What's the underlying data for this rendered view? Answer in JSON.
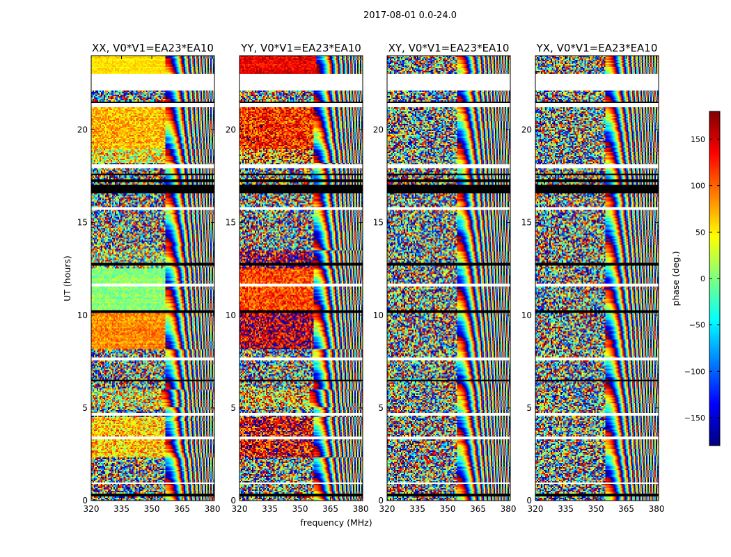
{
  "chart_data": {
    "type": "heatmap",
    "suptitle": "2017-08-01 0.0-24.0",
    "xlabel": "frequency (MHz)",
    "ylabel": "UT (hours)",
    "xlim": [
      320,
      381
    ],
    "ylim": [
      0,
      24
    ],
    "xticks": [
      320,
      335,
      350,
      365,
      380
    ],
    "yticks": [
      0,
      5,
      10,
      15,
      20
    ],
    "colorbar": {
      "label": "phase (deg.)",
      "range": [
        -180,
        180
      ],
      "ticks": [
        -150,
        -100,
        -50,
        0,
        50,
        100,
        150
      ],
      "colormap": "jet",
      "colors": [
        "#00007f",
        "#0000ff",
        "#007fff",
        "#00ffff",
        "#7fff7f",
        "#ffff00",
        "#ff7f00",
        "#ff0000",
        "#7f0000"
      ]
    },
    "flagged_color": "#000000",
    "no_data_color": "#ffffff",
    "panels": [
      {
        "title": "XX, V0*V1=EA23*EA10",
        "segments": [
          {
            "ut": [
              23.0,
              24.0
            ],
            "mean_phase": 55,
            "spread": 14,
            "fringe_above": 357
          },
          {
            "ut": [
              19.0,
              21.2
            ],
            "mean_phase": 70,
            "spread": 40,
            "fringe_above": 357
          },
          {
            "ut": [
              18.2,
              19.0
            ],
            "mean_phase": 40,
            "spread": 90,
            "fringe_above": 357
          },
          {
            "ut": [
              12.5,
              13.5
            ],
            "mean_phase": 20,
            "spread": 140,
            "fringe_above": 357
          },
          {
            "ut": [
              10.2,
              12.5
            ],
            "mean_phase": 5,
            "spread": 25,
            "fringe_above": 357
          },
          {
            "ut": [
              8.2,
              10.2
            ],
            "mean_phase": 85,
            "spread": 30,
            "fringe_above": 357
          },
          {
            "ut": [
              5.0,
              6.0
            ],
            "mean_phase": 40,
            "spread": 120,
            "fringe_above": 355
          },
          {
            "ut": [
              2.3,
              4.5
            ],
            "mean_phase": 60,
            "spread": 60,
            "fringe_above": 357
          },
          {
            "ut": [
              0.0,
              2.3
            ],
            "mean_phase": 0,
            "spread": 180,
            "fringe_above": 357
          }
        ]
      },
      {
        "title": "YY, V0*V1=EA23*EA10",
        "segments": [
          {
            "ut": [
              23.0,
              24.0
            ],
            "mean_phase": 140,
            "spread": 25,
            "fringe_above": 358
          },
          {
            "ut": [
              19.0,
              21.2
            ],
            "mean_phase": 120,
            "spread": 60,
            "fringe_above": 357
          },
          {
            "ut": [
              18.2,
              19.0
            ],
            "mean_phase": 90,
            "spread": 120,
            "fringe_above": 357
          },
          {
            "ut": [
              12.5,
              13.5
            ],
            "mean_phase": 160,
            "spread": 100,
            "fringe_above": 357
          },
          {
            "ut": [
              10.2,
              12.5
            ],
            "mean_phase": 110,
            "spread": 45,
            "fringe_above": 357
          },
          {
            "ut": [
              8.2,
              10.2
            ],
            "mean_phase": 150,
            "spread": 70,
            "fringe_above": 357
          },
          {
            "ut": [
              5.0,
              6.0
            ],
            "mean_phase": 60,
            "spread": 130,
            "fringe_above": 355
          },
          {
            "ut": [
              2.3,
              4.5
            ],
            "mean_phase": 140,
            "spread": 80,
            "fringe_above": 357
          },
          {
            "ut": [
              0.0,
              2.3
            ],
            "mean_phase": 0,
            "spread": 180,
            "fringe_above": 357
          }
        ]
      },
      {
        "title": "XY, V0*V1=EA23*EA10",
        "segments": [
          {
            "ut": [
              0.0,
              24.0
            ],
            "mean_phase": 0,
            "spread": 180,
            "fringe_above": 355
          }
        ]
      },
      {
        "title": "YX, V0*V1=EA23*EA10",
        "segments": [
          {
            "ut": [
              0.0,
              24.0
            ],
            "mean_phase": 0,
            "spread": 180,
            "fringe_above": 355
          }
        ]
      }
    ],
    "no_data_ut": [
      [
        22.15,
        23.0
      ],
      [
        21.2,
        21.5
      ],
      [
        17.95,
        18.15
      ],
      [
        15.65,
        15.85
      ],
      [
        11.55,
        11.7
      ],
      [
        7.6,
        7.75
      ],
      [
        4.55,
        4.7
      ],
      [
        3.3,
        3.42
      ],
      [
        0.9,
        1.0
      ]
    ],
    "flagged_ut": [
      [
        21.45,
        21.55
      ],
      [
        17.55,
        17.65
      ],
      [
        17.2,
        17.3
      ],
      [
        16.55,
        17.05
      ],
      [
        12.7,
        12.8
      ],
      [
        10.15,
        10.25
      ],
      [
        6.45,
        6.55
      ],
      [
        0.25,
        0.35
      ]
    ],
    "grid": false,
    "legend": "none"
  }
}
